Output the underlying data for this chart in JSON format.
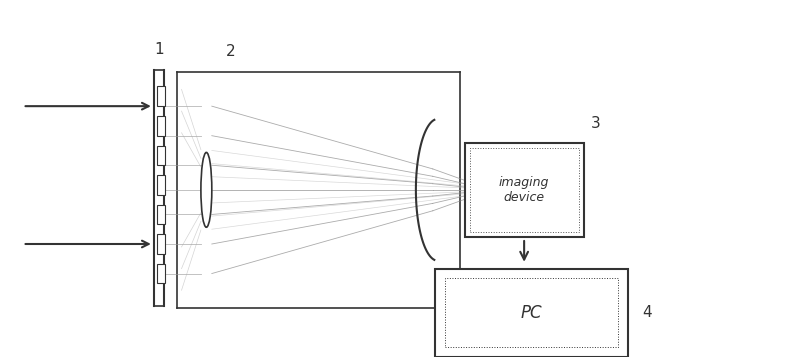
{
  "bg_color": "#ffffff",
  "line_color": "#555555",
  "dark_color": "#333333",
  "label1": "1",
  "label2": "2",
  "label3": "3",
  "label4": "4",
  "imaging_device_text": "imaging\ndevice",
  "pc_text": "PC",
  "figsize": [
    8.0,
    3.6
  ],
  "dpi": 100,
  "xlim": [
    0,
    8
  ],
  "ylim": [
    0,
    3.6
  ]
}
